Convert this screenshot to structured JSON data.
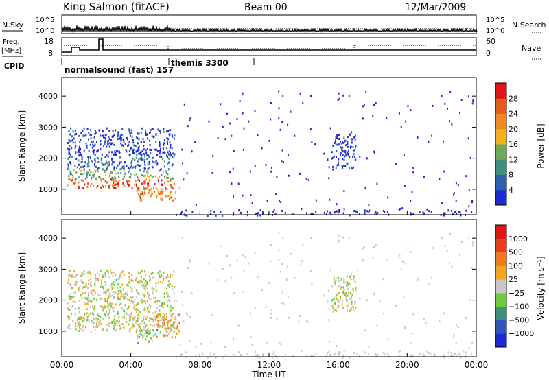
{
  "header": {
    "station": "King Salmon (fitACF)",
    "beam": "Beam 00",
    "date": "12/Mar/2009"
  },
  "top_panels": {
    "nsky_label": "N.Sky",
    "nsky_ticks": [
      "10^5",
      "10^0"
    ],
    "nsearch_label": "N.Search",
    "freq_label": "Freq.",
    "freq_unit": "[MHz]",
    "freq_ticks": [
      "18",
      "8"
    ],
    "nave_ticks": [
      "60",
      "0"
    ],
    "nave_label": "Nave",
    "cpid_label": "CPID",
    "cpid_programs": [
      {
        "name": "normalsound (fast) 157",
        "start_hour": 0
      },
      {
        "name": "themis 3300",
        "start_hour": 6.5
      }
    ]
  },
  "colors": {
    "power": [
      "#1e2bd0",
      "#2f5fb0",
      "#3f8f7f",
      "#6fa85a",
      "#f2b21e",
      "#f08a20",
      "#e85a1c",
      "#e01515"
    ],
    "velocity": [
      "#1e2bd0",
      "#3055b8",
      "#3f8f7f",
      "#6ccc3a",
      "#c8c8c8",
      "#f2a51e",
      "#f07a20",
      "#e84018",
      "#e01515"
    ]
  },
  "chart_data": [
    {
      "type": "heatmap",
      "name": "power",
      "xlabel": "Time UT",
      "ylabel": "Slant Range [km]",
      "xlim": [
        0,
        24
      ],
      "ylim": [
        180,
        4600
      ],
      "xticks": [
        "00:00",
        "04:00",
        "08:00",
        "12:00",
        "16:00",
        "20:00",
        "00:00"
      ],
      "yticks": [
        1000,
        2000,
        3000,
        4000
      ],
      "colorbar_label": "Power [dB]",
      "colorbar_ticks": [
        4,
        8,
        12,
        16,
        20,
        24,
        28
      ],
      "colorbar_range": [
        0,
        32
      ],
      "regions": [
        {
          "t": [
            0.3,
            6.5
          ],
          "r": [
            1050,
            1350
          ],
          "level": 6
        },
        {
          "t": [
            0.3,
            6.5
          ],
          "r": [
            1350,
            1650
          ],
          "level": 3
        },
        {
          "t": [
            0.3,
            6.5
          ],
          "r": [
            1650,
            2100
          ],
          "level": 1
        },
        {
          "t": [
            0.3,
            6.5
          ],
          "r": [
            2100,
            3000
          ],
          "level": 0
        },
        {
          "t": [
            4.2,
            6.8
          ],
          "r": [
            650,
            1100
          ],
          "level": 5
        },
        {
          "t": [
            15.6,
            17.0
          ],
          "r": [
            1650,
            2800
          ],
          "level": 0
        },
        {
          "t": [
            6.5,
            24
          ],
          "r": [
            180,
            4200
          ],
          "level": 0,
          "sparse": true
        }
      ]
    },
    {
      "type": "heatmap",
      "name": "velocity",
      "xlabel": "Time UT",
      "ylabel": "Slant Range [km]",
      "xlim": [
        0,
        24
      ],
      "ylim": [
        180,
        4600
      ],
      "xticks": [
        "00:00",
        "04:00",
        "08:00",
        "12:00",
        "16:00",
        "20:00",
        "00:00"
      ],
      "yticks": [
        1000,
        2000,
        3000,
        4000
      ],
      "colorbar_label": "Velocity [m s⁻¹]",
      "colorbar_ticks": [
        "1000",
        "500",
        "100",
        "25",
        "−25",
        "−100",
        "−500",
        "−1000"
      ],
      "regions": [
        {
          "t": [
            0.3,
            6.5
          ],
          "r": [
            1000,
            3000
          ],
          "level": 4
        },
        {
          "t": [
            4.2,
            5.5
          ],
          "r": [
            650,
            1100
          ],
          "level": 3
        },
        {
          "t": [
            5.2,
            6.8
          ],
          "r": [
            800,
            1600
          ],
          "level": 5
        },
        {
          "t": [
            15.6,
            17.0
          ],
          "r": [
            1650,
            2800
          ],
          "level": 4
        },
        {
          "t": [
            6.5,
            24
          ],
          "r": [
            180,
            4200
          ],
          "level": 4,
          "sparse": true
        }
      ]
    }
  ]
}
